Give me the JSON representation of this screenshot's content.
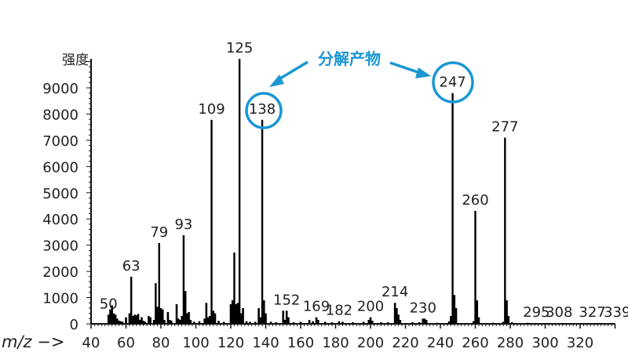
{
  "chart_data": {
    "type": "bar",
    "ylabel": "强度",
    "xlabel": "m/z −>",
    "xlim": [
      40,
      340
    ],
    "ylim": [
      0,
      10100
    ],
    "x_ticks": [
      "40",
      "60",
      "80",
      "100",
      "120",
      "140",
      "160",
      "180",
      "200",
      "220",
      "240",
      "260",
      "280",
      "300",
      "320"
    ],
    "y_ticks": [
      "0",
      "1000",
      "2000",
      "3000",
      "4000",
      "5000",
      "6000",
      "7000",
      "8000",
      "9000"
    ],
    "grid": false,
    "peaks": [
      [
        50,
        350
      ],
      [
        51,
        550
      ],
      [
        52,
        700
      ],
      [
        53,
        400
      ],
      [
        54,
        350
      ],
      [
        55,
        200
      ],
      [
        56,
        120
      ],
      [
        57,
        100
      ],
      [
        58,
        80
      ],
      [
        60,
        250
      ],
      [
        62,
        400
      ],
      [
        63,
        1800
      ],
      [
        64,
        300
      ],
      [
        65,
        350
      ],
      [
        66,
        330
      ],
      [
        67,
        380
      ],
      [
        68,
        150
      ],
      [
        69,
        250
      ],
      [
        70,
        120
      ],
      [
        71,
        80
      ],
      [
        73,
        300
      ],
      [
        74,
        250
      ],
      [
        76,
        150
      ],
      [
        77,
        1550
      ],
      [
        78,
        650
      ],
      [
        79,
        3080
      ],
      [
        80,
        600
      ],
      [
        81,
        550
      ],
      [
        82,
        150
      ],
      [
        84,
        450
      ],
      [
        85,
        150
      ],
      [
        86,
        120
      ],
      [
        89,
        750
      ],
      [
        90,
        200
      ],
      [
        91,
        150
      ],
      [
        92,
        300
      ],
      [
        93,
        3380
      ],
      [
        94,
        1250
      ],
      [
        95,
        400
      ],
      [
        96,
        450
      ],
      [
        97,
        150
      ],
      [
        99,
        80
      ],
      [
        102,
        100
      ],
      [
        105,
        200
      ],
      [
        106,
        800
      ],
      [
        107,
        250
      ],
      [
        108,
        300
      ],
      [
        109,
        7780
      ],
      [
        110,
        500
      ],
      [
        111,
        400
      ],
      [
        113,
        120
      ],
      [
        116,
        80
      ],
      [
        120,
        750
      ],
      [
        121,
        900
      ],
      [
        122,
        2720
      ],
      [
        123,
        750
      ],
      [
        124,
        800
      ],
      [
        125,
        10100
      ],
      [
        126,
        400
      ],
      [
        127,
        600
      ],
      [
        129,
        100
      ],
      [
        131,
        80
      ],
      [
        134,
        80
      ],
      [
        136,
        600
      ],
      [
        137,
        250
      ],
      [
        138,
        7780
      ],
      [
        139,
        900
      ],
      [
        140,
        400
      ],
      [
        143,
        80
      ],
      [
        146,
        60
      ],
      [
        150,
        500
      ],
      [
        151,
        150
      ],
      [
        152,
        500
      ],
      [
        153,
        250
      ],
      [
        156,
        60
      ],
      [
        160,
        80
      ],
      [
        165,
        150
      ],
      [
        167,
        100
      ],
      [
        169,
        250
      ],
      [
        170,
        150
      ],
      [
        174,
        80
      ],
      [
        178,
        60
      ],
      [
        182,
        100
      ],
      [
        184,
        80
      ],
      [
        190,
        60
      ],
      [
        196,
        80
      ],
      [
        199,
        150
      ],
      [
        200,
        250
      ],
      [
        201,
        120
      ],
      [
        206,
        60
      ],
      [
        210,
        60
      ],
      [
        214,
        800
      ],
      [
        215,
        600
      ],
      [
        216,
        350
      ],
      [
        217,
        150
      ],
      [
        224,
        60
      ],
      [
        228,
        60
      ],
      [
        230,
        200
      ],
      [
        231,
        200
      ],
      [
        232,
        150
      ],
      [
        238,
        40
      ],
      [
        245,
        100
      ],
      [
        246,
        300
      ],
      [
        247,
        8800
      ],
      [
        248,
        1100
      ],
      [
        249,
        600
      ],
      [
        259,
        100
      ],
      [
        260,
        4310
      ],
      [
        261,
        900
      ],
      [
        262,
        250
      ],
      [
        270,
        40
      ],
      [
        276,
        80
      ],
      [
        277,
        7100
      ],
      [
        278,
        900
      ],
      [
        279,
        300
      ],
      [
        281,
        60
      ],
      [
        290,
        40
      ],
      [
        300,
        30
      ],
      [
        310,
        30
      ],
      [
        320,
        30
      ],
      [
        330,
        30
      ]
    ],
    "peak_labels": [
      {
        "mz": 50,
        "text": "50"
      },
      {
        "mz": 63,
        "text": "63"
      },
      {
        "mz": 79,
        "text": "79"
      },
      {
        "mz": 93,
        "text": "93"
      },
      {
        "mz": 109,
        "text": "109"
      },
      {
        "mz": 125,
        "text": "125"
      },
      {
        "mz": 138,
        "text": "138"
      },
      {
        "mz": 152,
        "text": "152"
      },
      {
        "mz": 169,
        "text": "169"
      },
      {
        "mz": 182,
        "text": "182"
      },
      {
        "mz": 200,
        "text": "200"
      },
      {
        "mz": 214,
        "text": "214"
      },
      {
        "mz": 230,
        "text": "230"
      },
      {
        "mz": 247,
        "text": "247"
      },
      {
        "mz": 260,
        "text": "260"
      },
      {
        "mz": 277,
        "text": "277"
      },
      {
        "mz": 295,
        "text": "295"
      },
      {
        "mz": 308,
        "text": "308"
      },
      {
        "mz": 327,
        "text": "327"
      },
      {
        "mz": 339,
        "text": "339"
      }
    ],
    "annotation": {
      "text": "分解产物",
      "color": "#1a97d3",
      "targets": [
        "138",
        "247"
      ]
    }
  }
}
